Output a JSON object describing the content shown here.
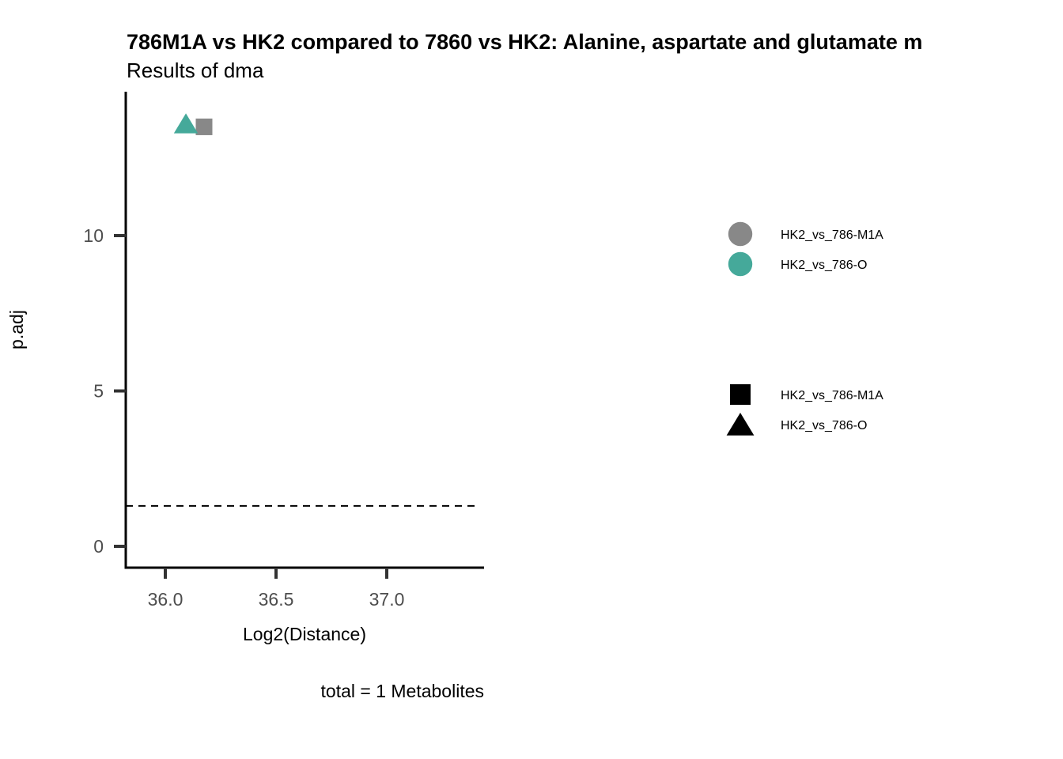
{
  "chart_data": {
    "type": "scatter",
    "title": "786M1A vs HK2 compared to 7860 vs HK2: Alanine, aspartate and glutamate m",
    "subtitle": "Results of dma",
    "xlabel": "Log2(Distance)",
    "ylabel": "p.adj",
    "caption": "total = 1 Metabolites",
    "xlim": [
      35.82,
      37.44
    ],
    "ylim": [
      -0.7,
      14.6
    ],
    "xticks": [
      36.0,
      36.5,
      37.0
    ],
    "xtick_labels": [
      "36.0",
      "36.5",
      "37.0"
    ],
    "yticks": [
      0,
      5,
      10
    ],
    "ytick_labels": [
      "0",
      "5",
      "10"
    ],
    "threshold_line": {
      "y": 1.3,
      "style": "dashed"
    },
    "grid": false,
    "points": [
      {
        "x": 36.175,
        "y": 13.5,
        "series": "HK2_vs_786-M1A",
        "shape": "square",
        "color": "#888888"
      },
      {
        "x": 36.093,
        "y": 13.6,
        "series": "HK2_vs_786-O",
        "shape": "triangle",
        "color": "#45A99A"
      }
    ],
    "legend": {
      "placement": "right",
      "color_entries": [
        {
          "label": "HK2_vs_786-M1A",
          "color": "#888888"
        },
        {
          "label": "HK2_vs_786-O",
          "color": "#45A99A"
        }
      ],
      "shape_entries": [
        {
          "label": "HK2_vs_786-M1A",
          "shape": "square"
        },
        {
          "label": "HK2_vs_786-O",
          "shape": "triangle"
        }
      ]
    }
  }
}
